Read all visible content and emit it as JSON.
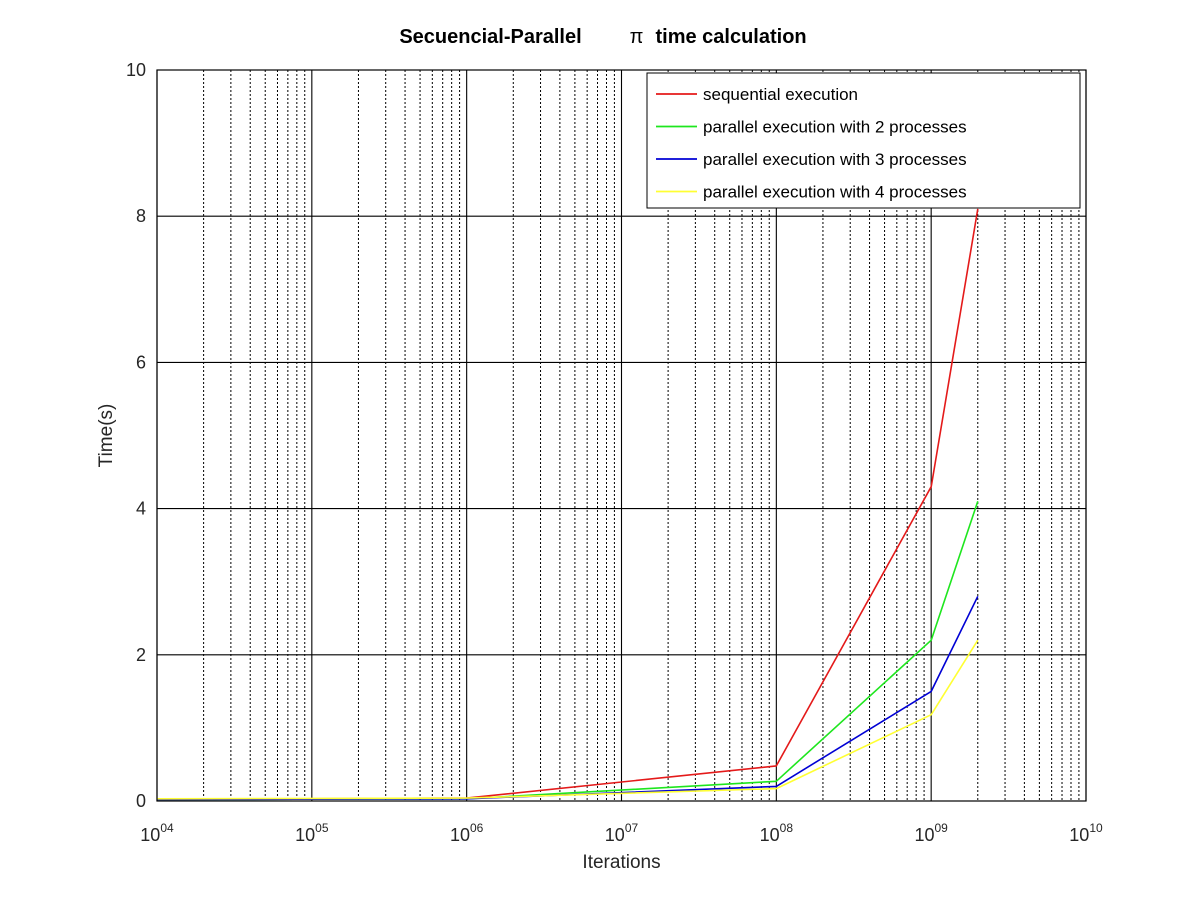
{
  "chart_data": {
    "type": "line",
    "title": "Secuencial-Parallel",
    "title_symbol": "π",
    "title_suffix": "time calculation",
    "xlabel": "Iterations",
    "ylabel": "Time(s)",
    "xscale": "log",
    "xlim": [
      10000,
      10000000000
    ],
    "ylim": [
      0,
      10
    ],
    "x_ticks": [
      {
        "base": "10",
        "exp": "04",
        "value": 10000
      },
      {
        "base": "10",
        "exp": "05",
        "value": 100000
      },
      {
        "base": "10",
        "exp": "06",
        "value": 1000000
      },
      {
        "base": "10",
        "exp": "07",
        "value": 10000000
      },
      {
        "base": "10",
        "exp": "08",
        "value": 100000000
      },
      {
        "base": "10",
        "exp": "09",
        "value": 1000000000
      },
      {
        "base": "10",
        "exp": "10",
        "value": 10000000000
      }
    ],
    "y_ticks": [
      {
        "label": "0",
        "value": 0
      },
      {
        "label": "2",
        "value": 2
      },
      {
        "label": "4",
        "value": 4
      },
      {
        "label": "6",
        "value": 6
      },
      {
        "label": "8",
        "value": 8
      },
      {
        "label": "10",
        "value": 10
      }
    ],
    "grid": true,
    "legend_position": "top-right",
    "x": [
      10000,
      1000000,
      100000000,
      1000000000,
      2000000000
    ],
    "series": [
      {
        "name": "sequential execution",
        "color": "#e41a1a",
        "values": [
          0.02,
          0.04,
          0.48,
          4.3,
          8.1
        ]
      },
      {
        "name": "parallel execution with 2 processes",
        "color": "#1ee61e",
        "values": [
          0.02,
          0.03,
          0.27,
          2.2,
          4.1
        ]
      },
      {
        "name": "parallel execution with 3 processes",
        "color": "#0000d4",
        "values": [
          0.02,
          0.03,
          0.2,
          1.5,
          2.8
        ]
      },
      {
        "name": "parallel execution with 4 processes",
        "color": "#ffff33",
        "values": [
          0.03,
          0.04,
          0.17,
          1.18,
          2.2
        ]
      }
    ]
  }
}
